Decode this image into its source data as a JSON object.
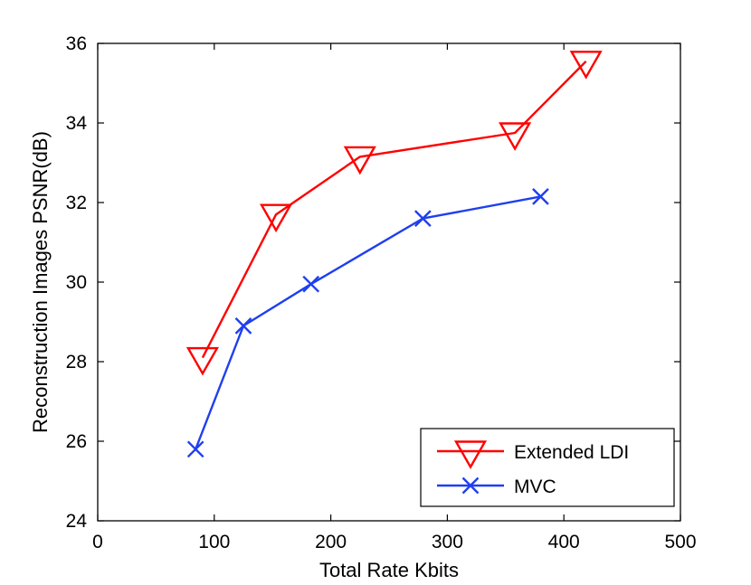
{
  "chart_data": {
    "type": "line",
    "title": "",
    "xlabel": "Total Rate Kbits",
    "ylabel": "Reconstruction Images PSNR(dB)",
    "xlim": [
      0,
      500
    ],
    "ylim": [
      24,
      36
    ],
    "xticks": [
      0,
      100,
      200,
      300,
      400,
      500
    ],
    "yticks": [
      24,
      26,
      28,
      30,
      32,
      34,
      36
    ],
    "grid": false,
    "legend_position": "bottom-right",
    "series": [
      {
        "name": "Extended LDI",
        "color": "#ff0000",
        "marker": "triangle-down",
        "x": [
          90,
          153,
          225,
          358,
          419
        ],
        "y": [
          28.1,
          31.7,
          33.15,
          33.75,
          35.55
        ]
      },
      {
        "name": "MVC",
        "color": "#1f3ff0",
        "marker": "x",
        "x": [
          84,
          125,
          183,
          279,
          380
        ],
        "y": [
          25.8,
          28.9,
          29.95,
          31.6,
          32.15
        ]
      }
    ]
  }
}
